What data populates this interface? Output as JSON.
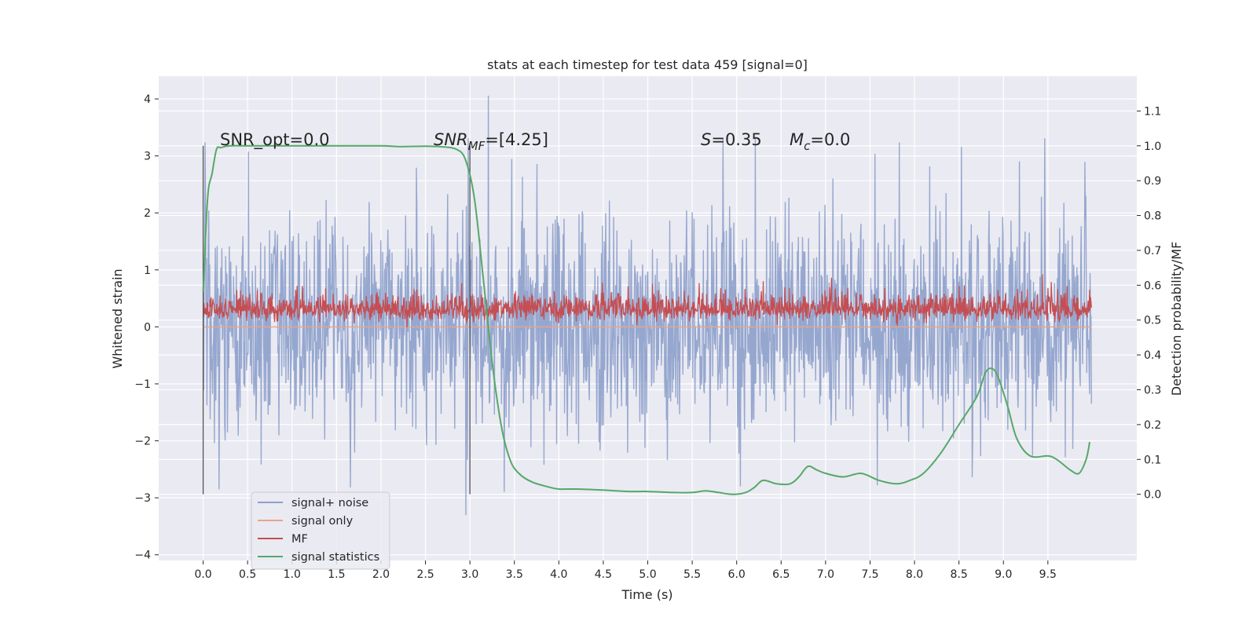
{
  "chart_data": {
    "type": "line",
    "title": "stats at each timestep for test data 459 [signal=0]",
    "xlabel": "Time (s)",
    "ylabel": "Whitened strain",
    "y2label": "Detection probability/MF",
    "xlim": [
      -0.5,
      10.5
    ],
    "ylim": [
      -4.1,
      4.4
    ],
    "y2lim": [
      -0.19,
      1.2
    ],
    "x_ticks": [
      "0.0",
      "0.5",
      "1.0",
      "1.5",
      "2.0",
      "2.5",
      "3.0",
      "3.5",
      "4.0",
      "4.5",
      "5.0",
      "5.5",
      "6.0",
      "6.5",
      "7.0",
      "7.5",
      "8.0",
      "8.5",
      "9.0",
      "9.5"
    ],
    "y_ticks": [
      "4",
      "3",
      "2",
      "1",
      "0",
      "−1",
      "−2",
      "−3",
      "−4"
    ],
    "y2_ticks": [
      "1.1",
      "1.0",
      "0.9",
      "0.8",
      "0.7",
      "0.6",
      "0.5",
      "0.4",
      "0.3",
      "0.2",
      "0.1",
      "0.0"
    ],
    "grid": true,
    "legend_position": "lower-left",
    "annotations": {
      "snr_opt": "SNR_opt=0.0",
      "snr_mf_sym": "SNR",
      "snr_mf_sub": "MF",
      "snr_mf_val": "=[4.25]",
      "s_sym": "S",
      "s_val": "=0.35",
      "mc_sym": "M",
      "mc_sub": "c",
      "mc_val": "=0.0"
    },
    "vertical_markers": [
      0.0,
      3.0
    ],
    "series": [
      {
        "name": "signal+ noise",
        "color": "#8da0cb",
        "description": "whitened strain noise, duration 0–10 s",
        "y_range": [
          -3.6,
          4.05
        ]
      },
      {
        "name": "signal only",
        "color": "#e6a58a",
        "y": 0
      },
      {
        "name": "MF",
        "color": "#c44e52",
        "axis": "y2",
        "y_range": [
          0.48,
          0.63
        ]
      },
      {
        "name": "signal statistics",
        "color": "#55a868",
        "axis": "y2",
        "x": [
          0.0,
          0.05,
          0.1,
          0.15,
          0.2,
          0.3,
          0.5,
          1.0,
          1.5,
          2.0,
          2.2,
          2.5,
          2.7,
          2.85,
          2.95,
          3.05,
          3.15,
          3.25,
          3.35,
          3.45,
          3.55,
          3.7,
          3.9,
          4.0,
          4.2,
          4.5,
          4.8,
          5.0,
          5.3,
          5.5,
          5.65,
          5.8,
          5.95,
          6.1,
          6.2,
          6.3,
          6.45,
          6.6,
          6.7,
          6.8,
          6.9,
          7.0,
          7.2,
          7.4,
          7.6,
          7.8,
          7.95,
          8.1,
          8.3,
          8.5,
          8.7,
          8.8,
          8.88,
          8.95,
          9.05,
          9.15,
          9.3,
          9.5,
          9.6,
          9.75,
          9.85,
          9.93,
          9.97
        ],
        "y": [
          0.58,
          0.85,
          0.92,
          0.99,
          0.995,
          1.0,
          1.0,
          1.0,
          1.0,
          1.0,
          0.998,
          0.999,
          0.997,
          0.99,
          0.96,
          0.85,
          0.62,
          0.38,
          0.2,
          0.1,
          0.06,
          0.035,
          0.02,
          0.015,
          0.015,
          0.012,
          0.008,
          0.008,
          0.005,
          0.005,
          0.01,
          0.005,
          0.0,
          0.005,
          0.02,
          0.04,
          0.03,
          0.03,
          0.05,
          0.08,
          0.07,
          0.06,
          0.05,
          0.06,
          0.04,
          0.03,
          0.04,
          0.06,
          0.12,
          0.2,
          0.28,
          0.35,
          0.36,
          0.33,
          0.25,
          0.16,
          0.11,
          0.11,
          0.1,
          0.07,
          0.06,
          0.1,
          0.15
        ]
      }
    ]
  }
}
